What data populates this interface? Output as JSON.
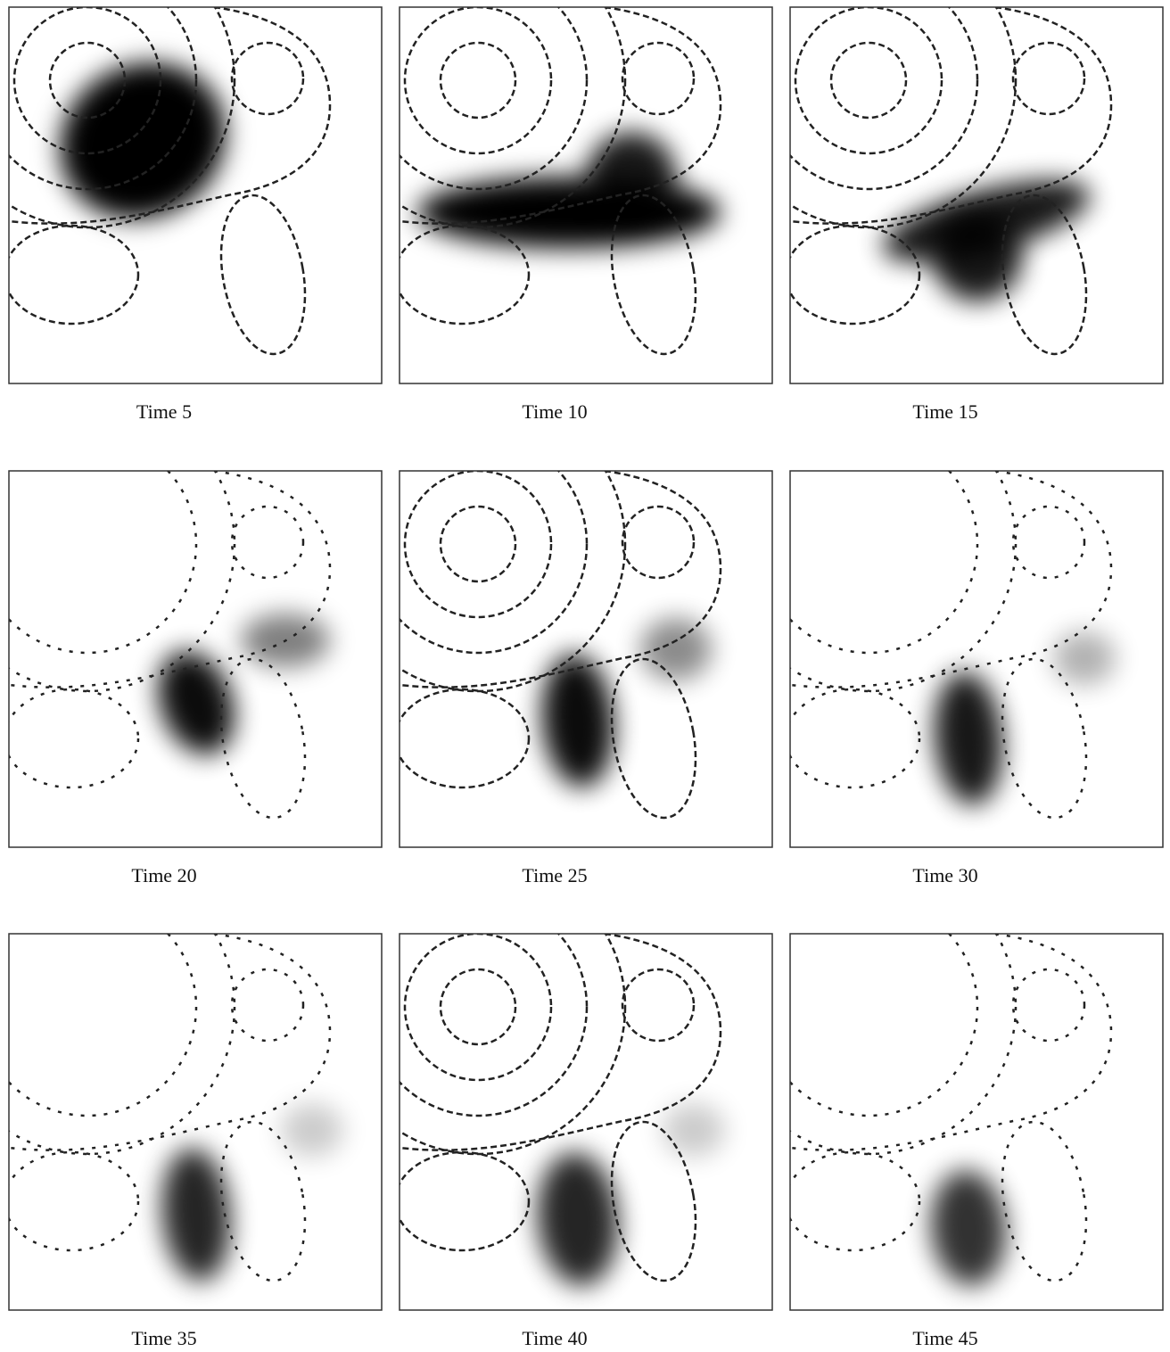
{
  "panels": [
    {
      "label": "Time 5"
    },
    {
      "label": "Time 10"
    },
    {
      "label": "Time 15"
    },
    {
      "label": "Time 20"
    },
    {
      "label": "Time 25"
    },
    {
      "label": "Time 30"
    },
    {
      "label": "Time 35"
    },
    {
      "label": "Time 40"
    },
    {
      "label": "Time 45"
    }
  ]
}
